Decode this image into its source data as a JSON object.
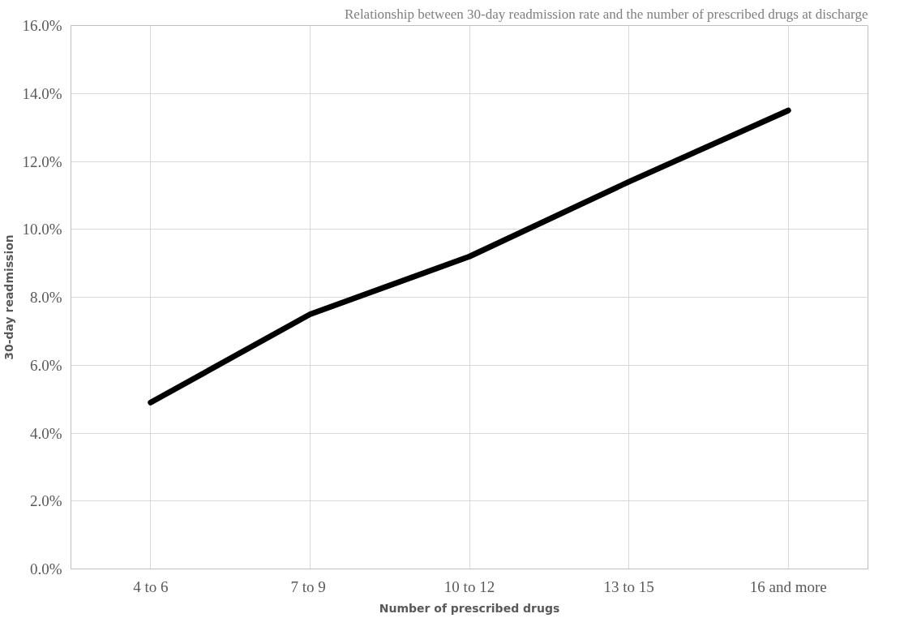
{
  "chart_data": {
    "type": "line",
    "title": "Relationship between 30-day readmission rate and the number of prescribed drugs at discharge",
    "xlabel": "Number of prescribed drugs",
    "ylabel": "30-day readmission",
    "categories": [
      "4 to 6",
      "7  to 9",
      "10 to 12",
      "13 to 15",
      "16 and more"
    ],
    "series": [
      {
        "color": "#000000",
        "values": [
          4.9,
          7.5,
          9.2,
          11.4,
          13.5
        ]
      }
    ],
    "ylim": [
      0,
      16
    ],
    "yticks": [
      {
        "value": 0,
        "label": "0.0%"
      },
      {
        "value": 2,
        "label": "2.0%"
      },
      {
        "value": 4,
        "label": "4.0%"
      },
      {
        "value": 6,
        "label": "6.0%"
      },
      {
        "value": 8,
        "label": "8.0%"
      },
      {
        "value": 10,
        "label": "10.0%"
      },
      {
        "value": 12,
        "label": "12.0%"
      },
      {
        "value": 14,
        "label": "14.0%"
      },
      {
        "value": 16,
        "label": "16.0%"
      }
    ],
    "grid": true,
    "marker": "none",
    "line_style": "solid"
  }
}
